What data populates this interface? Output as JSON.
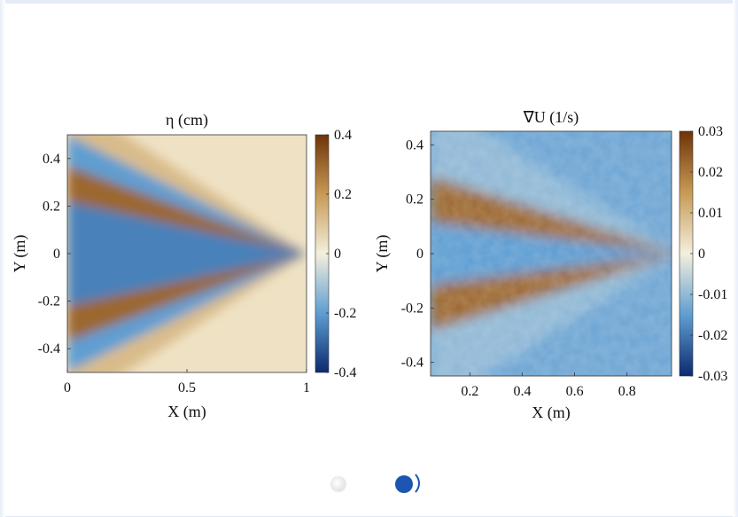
{
  "colormap": {
    "negative_dark": "#0b2a70",
    "negative_mid": "#5f9ed2",
    "zero": "#f4efdd",
    "positive_mid": "#c79a55",
    "positive_dark": "#6e3308"
  },
  "carousel": {
    "slides": 2,
    "active_index": 1,
    "active_color": "#1c56b0"
  },
  "chart_data": [
    {
      "type": "heatmap",
      "title": "η (cm)",
      "xlabel": "X (m)",
      "ylabel": "Y (m)",
      "xlim": [
        0,
        1
      ],
      "ylim": [
        -0.5,
        0.5
      ],
      "x_ticks": [
        0,
        0.5,
        1
      ],
      "x_tick_labels": [
        "0",
        "0.5",
        "1"
      ],
      "y_ticks": [
        0.4,
        0.2,
        0,
        -0.2,
        -0.4
      ],
      "y_tick_labels": [
        "0.4",
        "0.2",
        "0",
        "-0.2",
        "-0.4"
      ],
      "colorbar": {
        "range": [
          -0.4,
          0.4
        ],
        "ticks": [
          0.4,
          0.2,
          0,
          -0.2,
          -0.4
        ],
        "tick_labels": [
          "0.4",
          "0.2",
          "0",
          "-0.2",
          "-0.4"
        ]
      },
      "pattern": "ship-wake Kelvin wave pattern: alternating positive/negative elevation bands diverging from source at x = 1 toward x = 0",
      "source_x": 1,
      "wedge_bands": [
        {
          "slope": 0.22,
          "value": -0.25
        },
        {
          "slope": 0.37,
          "value": 0.3
        },
        {
          "slope": 0.5,
          "value": -0.2
        },
        {
          "slope": 0.66,
          "value": 0.12
        }
      ]
    },
    {
      "type": "heatmap",
      "title": "∇U (1/s)",
      "xlabel": "X (m)",
      "ylabel": "Y (m)",
      "xlim": [
        0.05,
        0.97
      ],
      "ylim": [
        -0.45,
        0.45
      ],
      "x_ticks": [
        0.2,
        0.4,
        0.6,
        0.8
      ],
      "x_tick_labels": [
        "0.2",
        "0.4",
        "0.6",
        "0.8"
      ],
      "y_ticks": [
        0.4,
        0.2,
        0,
        -0.2,
        -0.4
      ],
      "y_tick_labels": [
        "0.4",
        "0.2",
        "0",
        "-0.2",
        "-0.4"
      ],
      "colorbar": {
        "range": [
          -0.03,
          0.03
        ],
        "ticks": [
          0.03,
          0.02,
          0.01,
          0,
          -0.01,
          -0.02,
          -0.03
        ],
        "tick_labels": [
          "0.03",
          "0.02",
          "0.01",
          "0",
          "-0.01",
          "-0.02",
          "-0.03"
        ]
      },
      "pattern": "divergence field: broad positive bands along wake arms, negative core near centerline and outside arms",
      "source_x": 1,
      "wedge_bands": [
        {
          "slope": 0.12,
          "value": -0.015
        },
        {
          "slope": 0.3,
          "value": 0.022
        },
        {
          "slope": 0.6,
          "value": -0.01
        }
      ]
    }
  ]
}
